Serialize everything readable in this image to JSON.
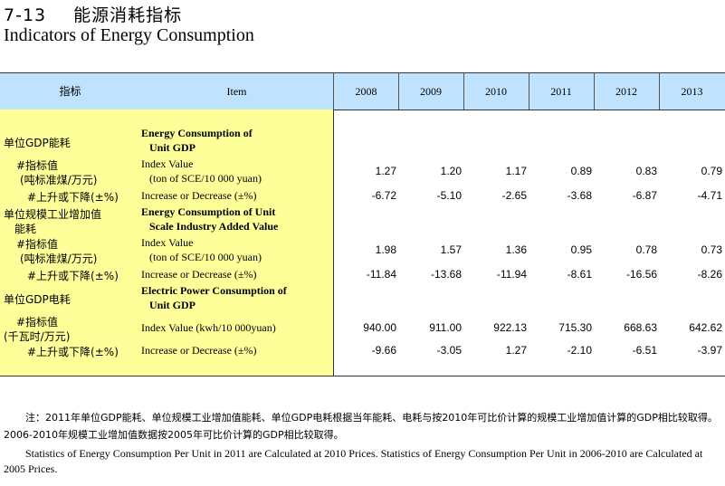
{
  "title": {
    "number": "7-13",
    "cn": "能源消耗指标",
    "en": "Indicators of Energy Consumption"
  },
  "header": {
    "indicator_cn": "指标",
    "item_en": "Item",
    "years": [
      "2008",
      "2009",
      "2010",
      "2011",
      "2012",
      "2013"
    ]
  },
  "sections": [
    {
      "cn_title": "单位GDP能耗",
      "en_title_1": "Energy Consumption of",
      "en_title_2": "Unit GDP",
      "index_cn_1": "#指标值",
      "index_cn_2": "(吨标准煤/万元)",
      "index_en_1": "Index Value",
      "index_en_2": "(ton of SCE/10 000 yuan)",
      "index_values": [
        "1.27",
        "1.20",
        "1.17",
        "0.89",
        "0.83",
        "0.79"
      ],
      "change_cn": "#上升或下降(±%)",
      "change_en": "Increase or  Decrease (±%)",
      "change_values": [
        "-6.72",
        "-5.10",
        "-2.65",
        "-3.68",
        "-6.87",
        "-4.71"
      ]
    },
    {
      "cn_title": "单位规模工业增加值",
      "cn_title_2": "能耗",
      "en_title_1": "Energy Consumption of Unit",
      "en_title_2": "Scale Industry Added Value",
      "index_cn_1": "#指标值",
      "index_cn_2": "(吨标准煤/万元)",
      "index_en_1": "Index Value",
      "index_en_2": "(ton of SCE/10 000 yuan)",
      "index_values": [
        "1.98",
        "1.57",
        "1.36",
        "0.95",
        "0.78",
        "0.73"
      ],
      "change_cn": "#上升或下降(±%)",
      "change_en": "Increase or  Decrease (±%)",
      "change_values": [
        "-11.84",
        "-13.68",
        "-11.94",
        "-8.61",
        "-16.56",
        "-8.26"
      ]
    },
    {
      "cn_title": "单位GDP电耗",
      "en_title_1": "Electric Power Consumption of",
      "en_title_2": "Unit GDP",
      "index_cn_1": "#指标值",
      "index_cn_2": "(千瓦时/万元)",
      "index_en_1": "Index Value (kwh/10 000yuan)",
      "index_values": [
        "940.00",
        "911.00",
        "922.13",
        "715.30",
        "668.63",
        "642.62"
      ],
      "change_cn": "#上升或下降(±%)",
      "change_en": "Increase or  Decrease (±%)",
      "change_values": [
        "-9.66",
        "-3.05",
        "1.27",
        "-2.10",
        "-6.51",
        "-3.97"
      ]
    }
  ],
  "notes": {
    "cn": "注：2011年单位GDP能耗、单位规模工业增加值能耗、单位GDP电耗根据当年能耗、电耗与按2010年可比价计算的规模工业增加值计算的GDP相比较取得。2006-2010年规模工业增加值数据按2005年可比价计算的GDP相比较取得。",
    "en": "Statistics of Energy Consumption Per Unit in 2011 are Calculated at 2010 Prices. Statistics of Energy Consumption Per Unit in 2006-2010 are Calculated at 2005 Prices."
  },
  "colors": {
    "header_bg": "#bfe3ff",
    "label_bg": "#ffff99"
  }
}
